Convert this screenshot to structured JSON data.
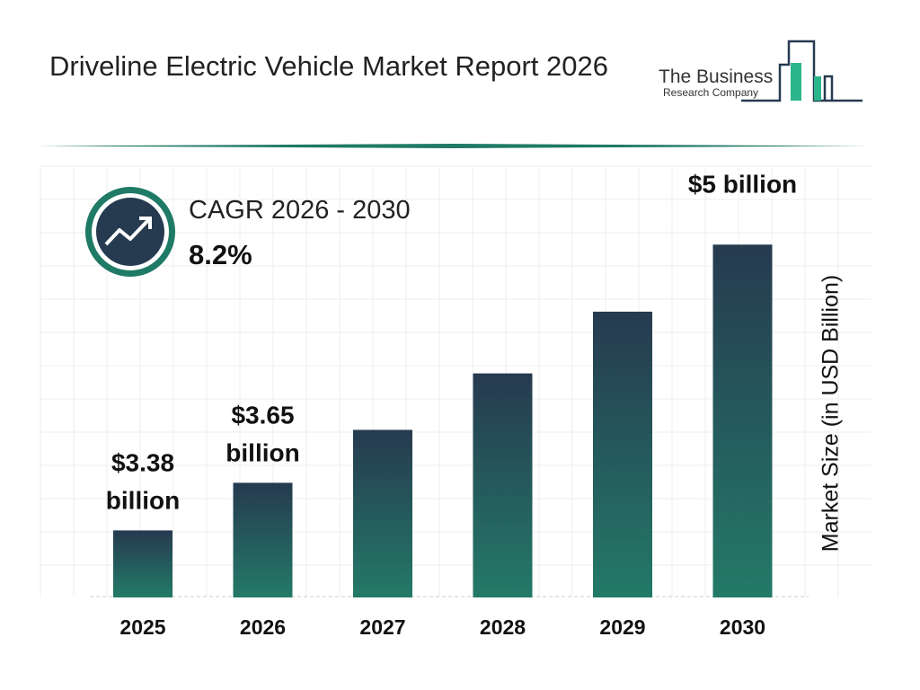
{
  "header": {
    "title": "Driveline Electric Vehicle Market Report 2026"
  },
  "logo": {
    "line1": "The Business",
    "line2": "Research Company"
  },
  "cagr": {
    "label": "CAGR 2026 - 2030",
    "value": "8.2%",
    "icon": "trend-up-arrow-icon"
  },
  "colors": {
    "bar_top": "#263a50",
    "bar_bottom": "#237a68",
    "accent": "#1f7a66",
    "dark": "#263a50"
  },
  "chart_data": {
    "type": "bar",
    "categories": [
      "2025",
      "2026",
      "2027",
      "2028",
      "2029",
      "2030"
    ],
    "values": [
      3.38,
      3.65,
      3.95,
      4.27,
      4.62,
      5.0
    ],
    "data_labels": [
      "$3.38 billion",
      "$3.65 billion",
      "",
      "",
      "",
      "$5 billion"
    ],
    "ylabel": "Market Size (in USD Billion)",
    "xlabel": "",
    "ylim": [
      3.0,
      5.2
    ],
    "grid": true
  }
}
